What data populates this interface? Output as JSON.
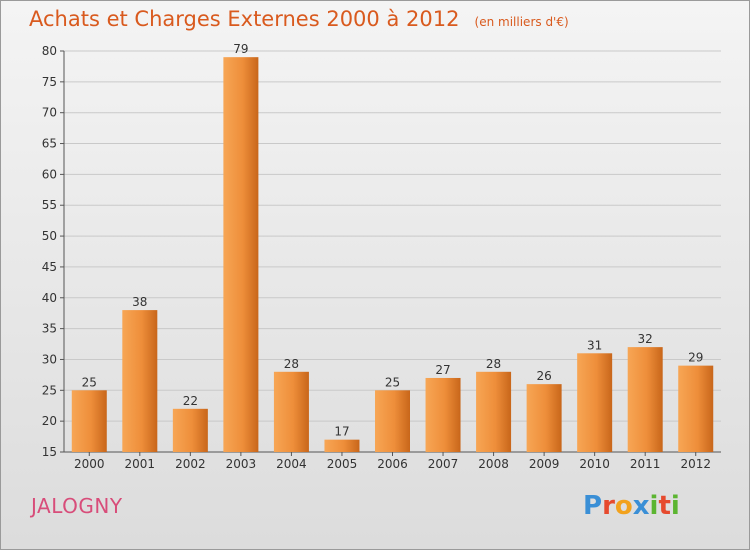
{
  "chart_data": {
    "type": "bar",
    "title": "Achats et Charges Externes 2000 à 2012",
    "subtitle": "(en milliers d'€)",
    "categories": [
      "2000",
      "2001",
      "2002",
      "2003",
      "2004",
      "2005",
      "2006",
      "2007",
      "2008",
      "2009",
      "2010",
      "2011",
      "2012"
    ],
    "values": [
      25,
      38,
      22,
      79,
      28,
      17,
      25,
      27,
      28,
      26,
      31,
      32,
      29
    ],
    "ylim": [
      15,
      80
    ],
    "yticks": [
      15,
      20,
      25,
      30,
      35,
      40,
      45,
      50,
      55,
      60,
      65,
      70,
      75,
      80
    ],
    "grid": true,
    "legend": "none",
    "colors": {
      "bar_light": "#f7a655",
      "bar_dark": "#c8661a",
      "title": "#d95a1e"
    }
  },
  "footer": {
    "commune": "JALOGNY",
    "logo_letters": [
      {
        "ch": "P",
        "color": "#3a8fd6"
      },
      {
        "ch": "r",
        "color": "#e64a2e"
      },
      {
        "ch": "o",
        "color": "#f2a21d"
      },
      {
        "ch": "x",
        "color": "#3a8fd6"
      },
      {
        "ch": "i",
        "color": "#5cb531"
      },
      {
        "ch": "t",
        "color": "#e64a2e"
      },
      {
        "ch": "i",
        "color": "#5cb531"
      }
    ]
  }
}
